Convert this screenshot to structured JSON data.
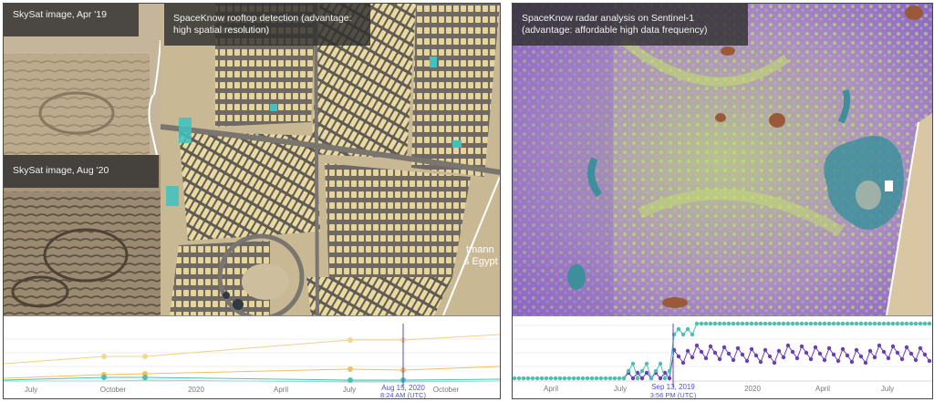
{
  "left_panel": {
    "captions": {
      "apr19": "SkySat image, Apr '19",
      "aug20": "SkySat image, Aug '20",
      "rooftop": "SpaceKnow rooftop detection (advantage: high spatial resolution)"
    },
    "map_label": {
      "line1": "tmann",
      "line2": "s Egypt"
    },
    "timeline": {
      "tick_labels": [
        "July",
        "October",
        "2020",
        "April",
        "July",
        "October"
      ],
      "cursor_date": "Aug 15, 2020",
      "cursor_time": "8:24 AM (UTC)"
    }
  },
  "right_panel": {
    "caption": "SpaceKnow radar analysis on Sentinel-1 (advantage: affordable high data frequency)",
    "timeline": {
      "tick_labels": [
        "April",
        "July",
        "2020",
        "April",
        "July"
      ],
      "cursor_date": "Sep 13, 2019",
      "cursor_time": "3:56 PM (UTC)"
    }
  },
  "colors": {
    "timeline_orange": "#f0c060",
    "timeline_teal": "#4bc0b0",
    "timeline_purple": "#6a3fb0",
    "cursor_blue": "#5050d0"
  }
}
